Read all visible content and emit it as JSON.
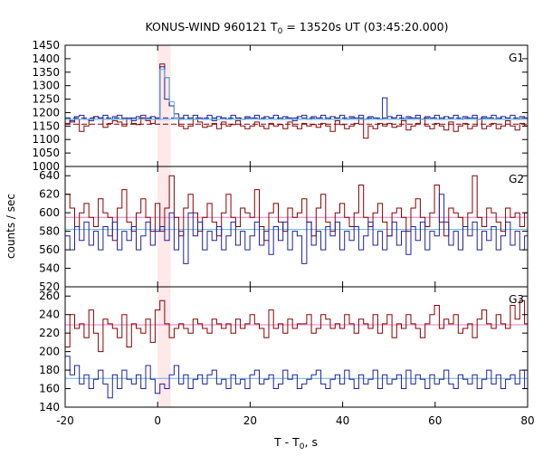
{
  "title": {
    "prefix": "KONUS-WIND 960121 T",
    "sub": "0",
    "suffix": " = 13520s UT (03:45:20.000)"
  },
  "ylabel": "counts / sec",
  "xlabel": {
    "prefix": "T - T",
    "sub": "0",
    "suffix": ", s"
  },
  "chart_data": {
    "type": "line",
    "title": "KONUS-WIND 960121 T0 = 13520s UT (03:45:20.000)",
    "xlabel": "T - T0, s",
    "ylabel": "counts / sec",
    "xlim": [
      -20,
      80
    ],
    "xticks": [
      -20,
      0,
      20,
      40,
      60,
      80
    ],
    "highlight_interval": [
      0,
      2.8
    ],
    "colors": {
      "red": "#8b0000",
      "blue": "#2020a0",
      "cyan": "#5ab4e6",
      "pink": "#e879c8",
      "highlight": "#fde8ea"
    },
    "panels": [
      {
        "label": "G1",
        "ylim": [
          1000,
          1450
        ],
        "yticks": [
          1000,
          1050,
          1100,
          1150,
          1200,
          1250,
          1300,
          1350,
          1400,
          1450
        ],
        "x_start": -20,
        "bin": 1.024,
        "series": [
          {
            "color": "red",
            "values": [
              1160,
              1170,
              1175,
              1130,
              1150,
              1175,
              1185,
              1180,
              1145,
              1160,
              1170,
              1165,
              1150,
              1175,
              1160,
              1155,
              1180,
              1170,
              1160,
              1175,
              1380,
              1330,
              1225,
              1180,
              1150,
              1140,
              1150,
              1175,
              1165,
              1145,
              1150,
              1160,
              1140,
              1165,
              1150,
              1155,
              1170,
              1150,
              1140,
              1150,
              1165,
              1150,
              1140,
              1160,
              1150,
              1155,
              1140,
              1165,
              1150,
              1140,
              1160,
              1150,
              1155,
              1145,
              1160,
              1150,
              1130,
              1170,
              1155,
              1140,
              1150,
              1160,
              1175,
              1105,
              1150,
              1140,
              1160,
              1150,
              1160,
              1145,
              1150,
              1170,
              1135,
              1150,
              1160,
              1175,
              1150,
              1140,
              1160,
              1150,
              1135,
              1165,
              1130,
              1150,
              1160,
              1140,
              1150,
              1175,
              1140,
              1150,
              1160,
              1140,
              1150,
              1170,
              1150,
              1135,
              1160,
              1150,
              1140,
              1170
            ]
          },
          {
            "color": "blue",
            "values": [
              1180,
              1165,
              1185,
              1190,
              1175,
              1170,
              1185,
              1180,
              1190,
              1175,
              1185,
              1190,
              1175,
              1180,
              1170,
              1185,
              1190,
              1175,
              1185,
              1180,
              1370,
              1250,
              1225,
              1195,
              1175,
              1190,
              1175,
              1190,
              1180,
              1175,
              1190,
              1170,
              1185,
              1180,
              1175,
              1190,
              1180,
              1175,
              1185,
              1180,
              1190,
              1175,
              1185,
              1180,
              1190,
              1175,
              1185,
              1180,
              1170,
              1185,
              1190,
              1175,
              1185,
              1180,
              1190,
              1175,
              1185,
              1180,
              1190,
              1175,
              1185,
              1180,
              1190,
              1175,
              1185,
              1180,
              1175,
              1255,
              1185,
              1180,
              1190,
              1175,
              1185,
              1180,
              1190,
              1175,
              1185,
              1180,
              1190,
              1175,
              1185,
              1180,
              1190,
              1175,
              1185,
              1180,
              1190,
              1175,
              1185,
              1180,
              1190,
              1175,
              1185,
              1180,
              1190,
              1175,
              1185,
              1180,
              1190,
              1175
            ]
          },
          {
            "color": "cyan",
            "values": [
              1175,
              1175,
              1175,
              1175,
              1175,
              1175,
              1175,
              1175,
              1175,
              1175,
              1175,
              1175,
              1175,
              1175,
              1175,
              1175,
              1175,
              1175,
              1175,
              1175,
              1360,
              1330,
              1240,
              1180,
              1175,
              1175,
              1175,
              1175,
              1175,
              1175,
              1175,
              1175,
              1175,
              1175,
              1175,
              1175,
              1175,
              1175,
              1175,
              1175,
              1175,
              1175,
              1175,
              1175,
              1175,
              1175,
              1175,
              1175,
              1175,
              1175,
              1175,
              1175,
              1175,
              1175,
              1175,
              1175,
              1175,
              1175,
              1175,
              1175,
              1175,
              1175,
              1175,
              1175,
              1175,
              1175,
              1175,
              1175,
              1175,
              1175,
              1175,
              1175,
              1175,
              1175,
              1175,
              1175,
              1175,
              1175,
              1175,
              1175,
              1175,
              1175,
              1175,
              1175,
              1175,
              1175,
              1175,
              1175,
              1175,
              1175,
              1175,
              1175,
              1175,
              1175,
              1175,
              1175,
              1175,
              1175,
              1175,
              1175
            ]
          }
        ],
        "hlines": [
          {
            "color": "cyan",
            "y": 1175,
            "dash": false
          },
          {
            "color": "blue",
            "y": 1180,
            "dash": true
          },
          {
            "color": "red",
            "y": 1157,
            "dash": true
          }
        ]
      },
      {
        "label": "G2",
        "ylim": [
          520,
          650
        ],
        "yticks": [
          520,
          540,
          560,
          580,
          600,
          620,
          640
        ],
        "x_start": -20,
        "bin": 1.024,
        "series": [
          {
            "color": "red",
            "values": [
              620,
              605,
              585,
              600,
              610,
              595,
              585,
              615,
              600,
              595,
              570,
              605,
              625,
              590,
              580,
              600,
              615,
              595,
              580,
              610,
              580,
              605,
              640,
              595,
              575,
              605,
              620,
              600,
              580,
              595,
              610,
              590,
              575,
              600,
              620,
              595,
              585,
              605,
              600,
              595,
              625,
              585,
              570,
              600,
              610,
              590,
              580,
              605,
              595,
              600,
              615,
              590,
              575,
              605,
              620,
              590,
              580,
              600,
              610,
              595,
              585,
              600,
              630,
              595,
              585,
              600,
              610,
              590,
              575,
              600,
              605,
              595,
              580,
              605,
              615,
              595,
              585,
              600,
              630,
              590,
              575,
              605,
              600,
              595,
              585,
              600,
              640,
              595,
              585,
              605,
              600,
              590,
              580,
              605,
              595,
              600,
              585,
              600,
              595,
              600
            ]
          },
          {
            "color": "blue",
            "values": [
              575,
              560,
              585,
              570,
              590,
              565,
              580,
              560,
              585,
              575,
              590,
              560,
              580,
              570,
              585,
              560,
              575,
              590,
              565,
              580,
              585,
              570,
              600,
              560,
              580,
              545,
              600,
              575,
              590,
              560,
              580,
              570,
              585,
              560,
              575,
              590,
              565,
              580,
              560,
              575,
              590,
              565,
              580,
              555,
              585,
              570,
              590,
              560,
              580,
              575,
              545,
              590,
              565,
              580,
              560,
              585,
              575,
              590,
              560,
              580,
              570,
              585,
              560,
              575,
              590,
              565,
              580,
              560,
              575,
              590,
              565,
              580,
              555,
              585,
              570,
              590,
              560,
              580,
              575,
              620,
              590,
              565,
              580,
              560,
              585,
              575,
              590,
              560,
              580,
              570,
              585,
              560,
              575,
              590,
              565,
              580,
              560,
              575,
              590,
              565
            ]
          }
        ],
        "hlines": [
          {
            "color": "pink",
            "y": 595,
            "dash": false
          },
          {
            "color": "cyan",
            "y": 582,
            "dash": false
          }
        ]
      },
      {
        "label": "G3",
        "ylim": [
          140,
          270
        ],
        "yticks": [
          140,
          160,
          180,
          200,
          220,
          240,
          260
        ],
        "x_start": -20,
        "bin": 1.024,
        "series": [
          {
            "color": "red",
            "values": [
              205,
              240,
              225,
              230,
              215,
              245,
              220,
              200,
              235,
              230,
              225,
              215,
              240,
              205,
              230,
              225,
              220,
              235,
              210,
              245,
              255,
              230,
              215,
              225,
              230,
              225,
              220,
              235,
              230,
              225,
              220,
              235,
              230,
              225,
              230,
              220,
              235,
              225,
              230,
              240,
              230,
              225,
              215,
              245,
              225,
              230,
              220,
              235,
              225,
              230,
              230,
              240,
              220,
              225,
              240,
              235,
              225,
              230,
              225,
              240,
              230,
              220,
              235,
              230,
              225,
              240,
              220,
              230,
              240,
              215,
              230,
              225,
              240,
              230,
              225,
              215,
              230,
              240,
              250,
              225,
              235,
              230,
              240,
              220,
              225,
              230,
              215,
              235,
              245,
              230,
              225,
              240,
              230,
              225,
              250,
              235,
              255,
              230,
              225,
              250
            ]
          },
          {
            "color": "blue",
            "values": [
              195,
              175,
              185,
              165,
              175,
              160,
              170,
              180,
              165,
              150,
              175,
              160,
              180,
              170,
              165,
              175,
              160,
              185,
              170,
              155,
              165,
              160,
              175,
              185,
              165,
              175,
              160,
              170,
              175,
              165,
              175,
              180,
              165,
              170,
              160,
              175,
              165,
              170,
              160,
              175,
              180,
              165,
              170,
              175,
              160,
              165,
              180,
              170,
              175,
              160,
              165,
              170,
              175,
              180,
              165,
              160,
              170,
              175,
              165,
              180,
              170,
              160,
              175,
              165,
              170,
              180,
              160,
              175,
              165,
              170,
              175,
              160,
              180,
              165,
              175,
              170,
              160,
              175,
              165,
              170,
              180,
              165,
              160,
              175,
              170,
              165,
              175,
              160,
              170,
              180,
              165,
              175,
              160,
              170,
              175,
              165,
              180,
              160,
              170,
              175
            ]
          }
        ],
        "hlines": [
          {
            "color": "pink",
            "y": 229,
            "dash": false
          },
          {
            "color": "cyan",
            "y": 171,
            "dash": false
          }
        ]
      }
    ]
  }
}
